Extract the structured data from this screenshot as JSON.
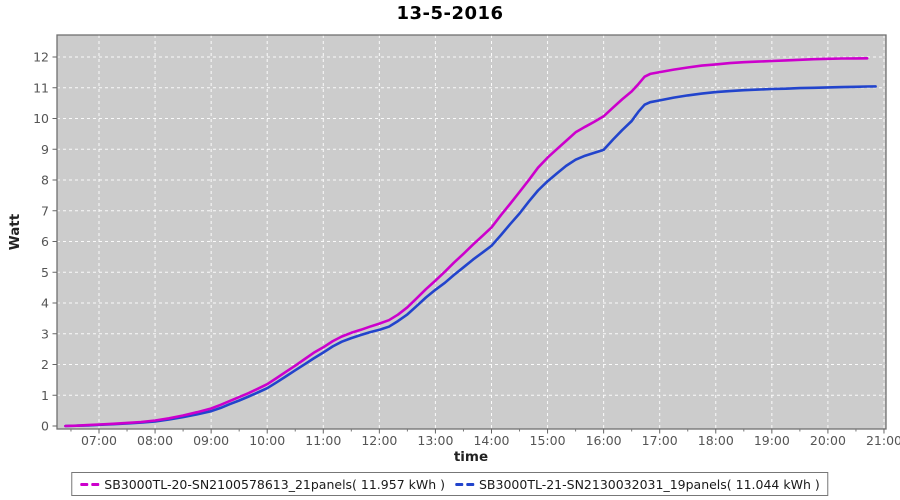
{
  "window": {
    "background": "#ffffff"
  },
  "chart_data": {
    "type": "line",
    "title": "13-5-2016",
    "xlabel": "time",
    "ylabel": "Watt",
    "plot_background": "#cccccc",
    "grid": {
      "visible": true,
      "color": "#ffffff",
      "style": "dashed"
    },
    "legend_position": "bottom-center",
    "x_range_hours": [
      6.25,
      21.04
    ],
    "ylim": [
      -0.1,
      12.72
    ],
    "y_ticks": [
      0,
      1,
      2,
      3,
      4,
      5,
      6,
      7,
      8,
      9,
      10,
      11,
      12
    ],
    "x_ticks": [
      {
        "hour": 7,
        "label": "07:00"
      },
      {
        "hour": 8,
        "label": "08:00"
      },
      {
        "hour": 9,
        "label": "09:00"
      },
      {
        "hour": 10,
        "label": "10:00"
      },
      {
        "hour": 11,
        "label": "11:00"
      },
      {
        "hour": 12,
        "label": "12:00"
      },
      {
        "hour": 13,
        "label": "13:00"
      },
      {
        "hour": 14,
        "label": "14:00"
      },
      {
        "hour": 15,
        "label": "15:00"
      },
      {
        "hour": 16,
        "label": "16:00"
      },
      {
        "hour": 17,
        "label": "17:00"
      },
      {
        "hour": 18,
        "label": "18:00"
      },
      {
        "hour": 19,
        "label": "19:00"
      },
      {
        "hour": 20,
        "label": "20:00"
      },
      {
        "hour": 21,
        "label": "21:00"
      }
    ],
    "series": [
      {
        "name": "SB3000TL-20-SN2100578613_21panels( 11.957 kWh )",
        "color": "#cc00cc",
        "total_kwh": 11.957,
        "points": [
          [
            6.4,
            0
          ],
          [
            6.6,
            0.01
          ],
          [
            6.8,
            0.03
          ],
          [
            7,
            0.05
          ],
          [
            7.25,
            0.07
          ],
          [
            7.5,
            0.1
          ],
          [
            7.75,
            0.13
          ],
          [
            8,
            0.18
          ],
          [
            8.25,
            0.25
          ],
          [
            8.5,
            0.34
          ],
          [
            8.75,
            0.45
          ],
          [
            9,
            0.57
          ],
          [
            9.17,
            0.69
          ],
          [
            9.33,
            0.81
          ],
          [
            9.5,
            0.94
          ],
          [
            9.67,
            1.07
          ],
          [
            9.83,
            1.21
          ],
          [
            10,
            1.36
          ],
          [
            10.17,
            1.56
          ],
          [
            10.33,
            1.76
          ],
          [
            10.5,
            1.96
          ],
          [
            10.67,
            2.18
          ],
          [
            10.83,
            2.38
          ],
          [
            11,
            2.56
          ],
          [
            11.17,
            2.76
          ],
          [
            11.33,
            2.91
          ],
          [
            11.5,
            3.03
          ],
          [
            11.67,
            3.13
          ],
          [
            11.83,
            3.23
          ],
          [
            12,
            3.33
          ],
          [
            12.17,
            3.44
          ],
          [
            12.33,
            3.62
          ],
          [
            12.5,
            3.86
          ],
          [
            12.67,
            4.16
          ],
          [
            12.83,
            4.45
          ],
          [
            13,
            4.73
          ],
          [
            13.17,
            5.02
          ],
          [
            13.33,
            5.31
          ],
          [
            13.5,
            5.6
          ],
          [
            13.67,
            5.9
          ],
          [
            13.83,
            6.17
          ],
          [
            14,
            6.46
          ],
          [
            14.17,
            6.86
          ],
          [
            14.33,
            7.22
          ],
          [
            14.5,
            7.61
          ],
          [
            14.67,
            8.01
          ],
          [
            14.83,
            8.4
          ],
          [
            15,
            8.73
          ],
          [
            15.17,
            9.01
          ],
          [
            15.33,
            9.27
          ],
          [
            15.5,
            9.55
          ],
          [
            15.67,
            9.73
          ],
          [
            15.83,
            9.89
          ],
          [
            16,
            10.07
          ],
          [
            16.17,
            10.36
          ],
          [
            16.33,
            10.62
          ],
          [
            16.5,
            10.88
          ],
          [
            16.62,
            11.12
          ],
          [
            16.73,
            11.36
          ],
          [
            16.83,
            11.45
          ],
          [
            17,
            11.51
          ],
          [
            17.25,
            11.59
          ],
          [
            17.5,
            11.66
          ],
          [
            17.75,
            11.72
          ],
          [
            18,
            11.76
          ],
          [
            18.25,
            11.8
          ],
          [
            18.5,
            11.83
          ],
          [
            18.75,
            11.85
          ],
          [
            19,
            11.87
          ],
          [
            19.25,
            11.89
          ],
          [
            19.5,
            11.91
          ],
          [
            19.75,
            11.93
          ],
          [
            20,
            11.94
          ],
          [
            20.25,
            11.95
          ],
          [
            20.5,
            11.955
          ],
          [
            20.7,
            11.957
          ]
        ]
      },
      {
        "name": "SB3000TL-21-SN2130032031_19panels( 11.044 kWh )",
        "color": "#2244cc",
        "total_kwh": 11.044,
        "points": [
          [
            6.4,
            0
          ],
          [
            6.6,
            0.01
          ],
          [
            6.8,
            0.02
          ],
          [
            7,
            0.04
          ],
          [
            7.25,
            0.06
          ],
          [
            7.5,
            0.08
          ],
          [
            7.75,
            0.11
          ],
          [
            8,
            0.15
          ],
          [
            8.25,
            0.21
          ],
          [
            8.5,
            0.29
          ],
          [
            8.75,
            0.38
          ],
          [
            9,
            0.48
          ],
          [
            9.17,
            0.59
          ],
          [
            9.33,
            0.71
          ],
          [
            9.5,
            0.83
          ],
          [
            9.67,
            0.96
          ],
          [
            9.83,
            1.09
          ],
          [
            10,
            1.23
          ],
          [
            10.17,
            1.42
          ],
          [
            10.33,
            1.61
          ],
          [
            10.5,
            1.81
          ],
          [
            10.67,
            2.01
          ],
          [
            10.83,
            2.2
          ],
          [
            11,
            2.39
          ],
          [
            11.17,
            2.59
          ],
          [
            11.33,
            2.74
          ],
          [
            11.5,
            2.86
          ],
          [
            11.67,
            2.96
          ],
          [
            11.83,
            3.05
          ],
          [
            12,
            3.13
          ],
          [
            12.17,
            3.23
          ],
          [
            12.33,
            3.41
          ],
          [
            12.5,
            3.63
          ],
          [
            12.67,
            3.91
          ],
          [
            12.83,
            4.18
          ],
          [
            13,
            4.43
          ],
          [
            13.17,
            4.66
          ],
          [
            13.33,
            4.91
          ],
          [
            13.5,
            5.16
          ],
          [
            13.67,
            5.41
          ],
          [
            13.83,
            5.63
          ],
          [
            14,
            5.86
          ],
          [
            14.17,
            6.21
          ],
          [
            14.33,
            6.56
          ],
          [
            14.5,
            6.91
          ],
          [
            14.67,
            7.31
          ],
          [
            14.83,
            7.66
          ],
          [
            15,
            7.96
          ],
          [
            15.17,
            8.22
          ],
          [
            15.33,
            8.46
          ],
          [
            15.5,
            8.66
          ],
          [
            15.67,
            8.79
          ],
          [
            15.83,
            8.88
          ],
          [
            16,
            8.98
          ],
          [
            16.17,
            9.32
          ],
          [
            16.33,
            9.62
          ],
          [
            16.5,
            9.92
          ],
          [
            16.62,
            10.22
          ],
          [
            16.73,
            10.45
          ],
          [
            16.83,
            10.53
          ],
          [
            17,
            10.59
          ],
          [
            17.25,
            10.68
          ],
          [
            17.5,
            10.75
          ],
          [
            17.75,
            10.81
          ],
          [
            18,
            10.86
          ],
          [
            18.25,
            10.89
          ],
          [
            18.5,
            10.92
          ],
          [
            18.75,
            10.94
          ],
          [
            19,
            10.96
          ],
          [
            19.25,
            10.97
          ],
          [
            19.5,
            10.99
          ],
          [
            19.75,
            11
          ],
          [
            20,
            11.01
          ],
          [
            20.25,
            11.02
          ],
          [
            20.5,
            11.03
          ],
          [
            20.7,
            11.04
          ],
          [
            20.85,
            11.044
          ]
        ]
      }
    ]
  }
}
